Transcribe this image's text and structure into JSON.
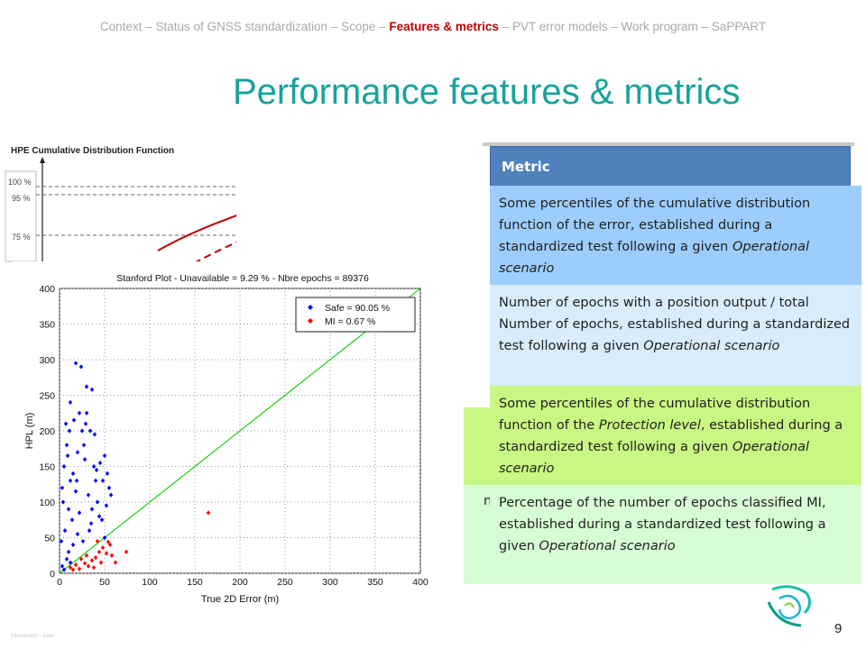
{
  "breadcrumb": {
    "items": [
      {
        "label": "Context",
        "active": false
      },
      {
        "label": "Status of GNSS standardization",
        "active": false
      },
      {
        "label": "Scope",
        "active": false
      },
      {
        "label": "Features & metrics",
        "active": true
      },
      {
        "label": "PVT error models",
        "active": false
      },
      {
        "label": "Work program",
        "active": false
      },
      {
        "label": "SaPPART",
        "active": false
      }
    ],
    "separator": "–"
  },
  "title": "Performance features & metrics",
  "table": {
    "header": "Metric",
    "stub_char": "n",
    "rows": [
      {
        "parts": [
          {
            "t": "Some percentiles of the cumulative distribution function of the error, established during a standardized test following a given "
          },
          {
            "t": "Operational scenario",
            "i": true
          }
        ]
      },
      {
        "parts": [
          {
            "t": "Number of epochs with a position output / total Number of epochs, established during a standardized test following a given "
          },
          {
            "t": "Operational scenario",
            "i": true
          }
        ]
      },
      {
        "parts": [
          {
            "t": "Some percentiles of the cumulative distribution function of the "
          },
          {
            "t": "Protection level",
            "i": true
          },
          {
            "t": ", established during a standardized test following a given "
          },
          {
            "t": "Operational scenario",
            "i": true
          }
        ]
      },
      {
        "parts": [
          {
            "t": "Percentage of the number of epochs classified MI, established during a standardized test following a given "
          },
          {
            "t": "Operational scenario",
            "i": true
          }
        ]
      }
    ]
  },
  "charts": {
    "cdf": {
      "title": "HPE Cumulative Distribution Function",
      "ticks": [
        "100 %",
        "95 %",
        "75 %"
      ]
    },
    "stanford": {
      "title": "Stanford Plot - Unavailable = 9.29 % - Nbre epochs = 89376",
      "xlabel": "True 2D Error (m)",
      "ylabel": "HPL (m)",
      "legend": [
        {
          "label": "Safe = 90.05 %",
          "color": "#0000ff"
        },
        {
          "label": "MI = 0.67 %",
          "color": "#ff0000"
        }
      ]
    }
  },
  "chart_data": [
    {
      "type": "line",
      "title": "HPE Cumulative Distribution Function",
      "yticks": [
        "100 %",
        "95 %",
        "75 %"
      ],
      "series": [
        {
          "style": "solid",
          "color": "#c00000"
        },
        {
          "style": "dashed",
          "color": "#c00000"
        }
      ]
    },
    {
      "type": "scatter",
      "title": "Stanford Plot - Unavailable = 9.29 % - Nbre epochs = 89376",
      "xlabel": "True 2D Error (m)",
      "ylabel": "HPL (m)",
      "xlim": [
        0,
        400
      ],
      "ylim": [
        0,
        400
      ],
      "xticks": [
        0,
        50,
        100,
        150,
        200,
        250,
        300,
        350,
        400
      ],
      "yticks": [
        0,
        50,
        100,
        150,
        200,
        250,
        300,
        350,
        400
      ],
      "grid": true,
      "legend_position": "top-right",
      "series": [
        {
          "name": "Safe = 90.05 %",
          "color": "#0000ff",
          "marker": "diamond",
          "points": [
            [
              3,
              120
            ],
            [
              5,
              150
            ],
            [
              4,
              100
            ],
            [
              8,
              180
            ],
            [
              6,
              60
            ],
            [
              10,
              90
            ],
            [
              12,
              130
            ],
            [
              15,
              140
            ],
            [
              20,
              170
            ],
            [
              25,
              200
            ],
            [
              30,
              225
            ],
            [
              18,
              115
            ],
            [
              22,
              85
            ],
            [
              28,
              160
            ],
            [
              32,
              110
            ],
            [
              35,
              70
            ],
            [
              38,
              150
            ],
            [
              40,
              130
            ],
            [
              45,
              155
            ],
            [
              50,
              165
            ],
            [
              55,
              120
            ],
            [
              42,
              100
            ],
            [
              36,
              90
            ],
            [
              20,
              55
            ],
            [
              15,
              40
            ],
            [
              10,
              30
            ],
            [
              8,
              20
            ],
            [
              26,
              45
            ],
            [
              33,
              60
            ],
            [
              47,
              75
            ],
            [
              52,
              95
            ],
            [
              24,
              290
            ],
            [
              18,
              295
            ],
            [
              30,
              262
            ],
            [
              36,
              258
            ],
            [
              12,
              240
            ],
            [
              16,
              215
            ],
            [
              7,
              210
            ],
            [
              2,
              45
            ],
            [
              3,
              10
            ],
            [
              50,
              50
            ],
            [
              44,
              80
            ],
            [
              14,
              75
            ],
            [
              19,
              130
            ],
            [
              27,
              180
            ],
            [
              34,
              200
            ],
            [
              39,
              195
            ],
            [
              9,
              165
            ],
            [
              11,
              200
            ],
            [
              22,
              225
            ],
            [
              29,
              210
            ],
            [
              41,
              145
            ],
            [
              48,
              130
            ],
            [
              53,
              140
            ],
            [
              57,
              110
            ],
            [
              5,
              5
            ],
            [
              12,
              15
            ]
          ]
        },
        {
          "name": "MI = 0.67 %",
          "color": "#ff0000",
          "marker": "diamond",
          "points": [
            [
              12,
              8
            ],
            [
              18,
              12
            ],
            [
              22,
              6
            ],
            [
              28,
              14
            ],
            [
              32,
              10
            ],
            [
              36,
              18
            ],
            [
              40,
              22
            ],
            [
              44,
              30
            ],
            [
              48,
              36
            ],
            [
              52,
              28
            ],
            [
              56,
              40
            ],
            [
              24,
              20
            ],
            [
              30,
              25
            ],
            [
              15,
              5
            ],
            [
              38,
              8
            ],
            [
              46,
              15
            ],
            [
              165,
              85
            ],
            [
              42,
              45
            ],
            [
              54,
              44
            ],
            [
              58,
              25
            ],
            [
              62,
              15
            ],
            [
              74,
              30
            ]
          ]
        },
        {
          "name": "",
          "color": "#00cc00",
          "style": "line",
          "points": [
            [
              0,
              0
            ],
            [
              400,
              400
            ]
          ]
        }
      ]
    }
  ],
  "page_number": "9",
  "footer": "intervenant - date"
}
